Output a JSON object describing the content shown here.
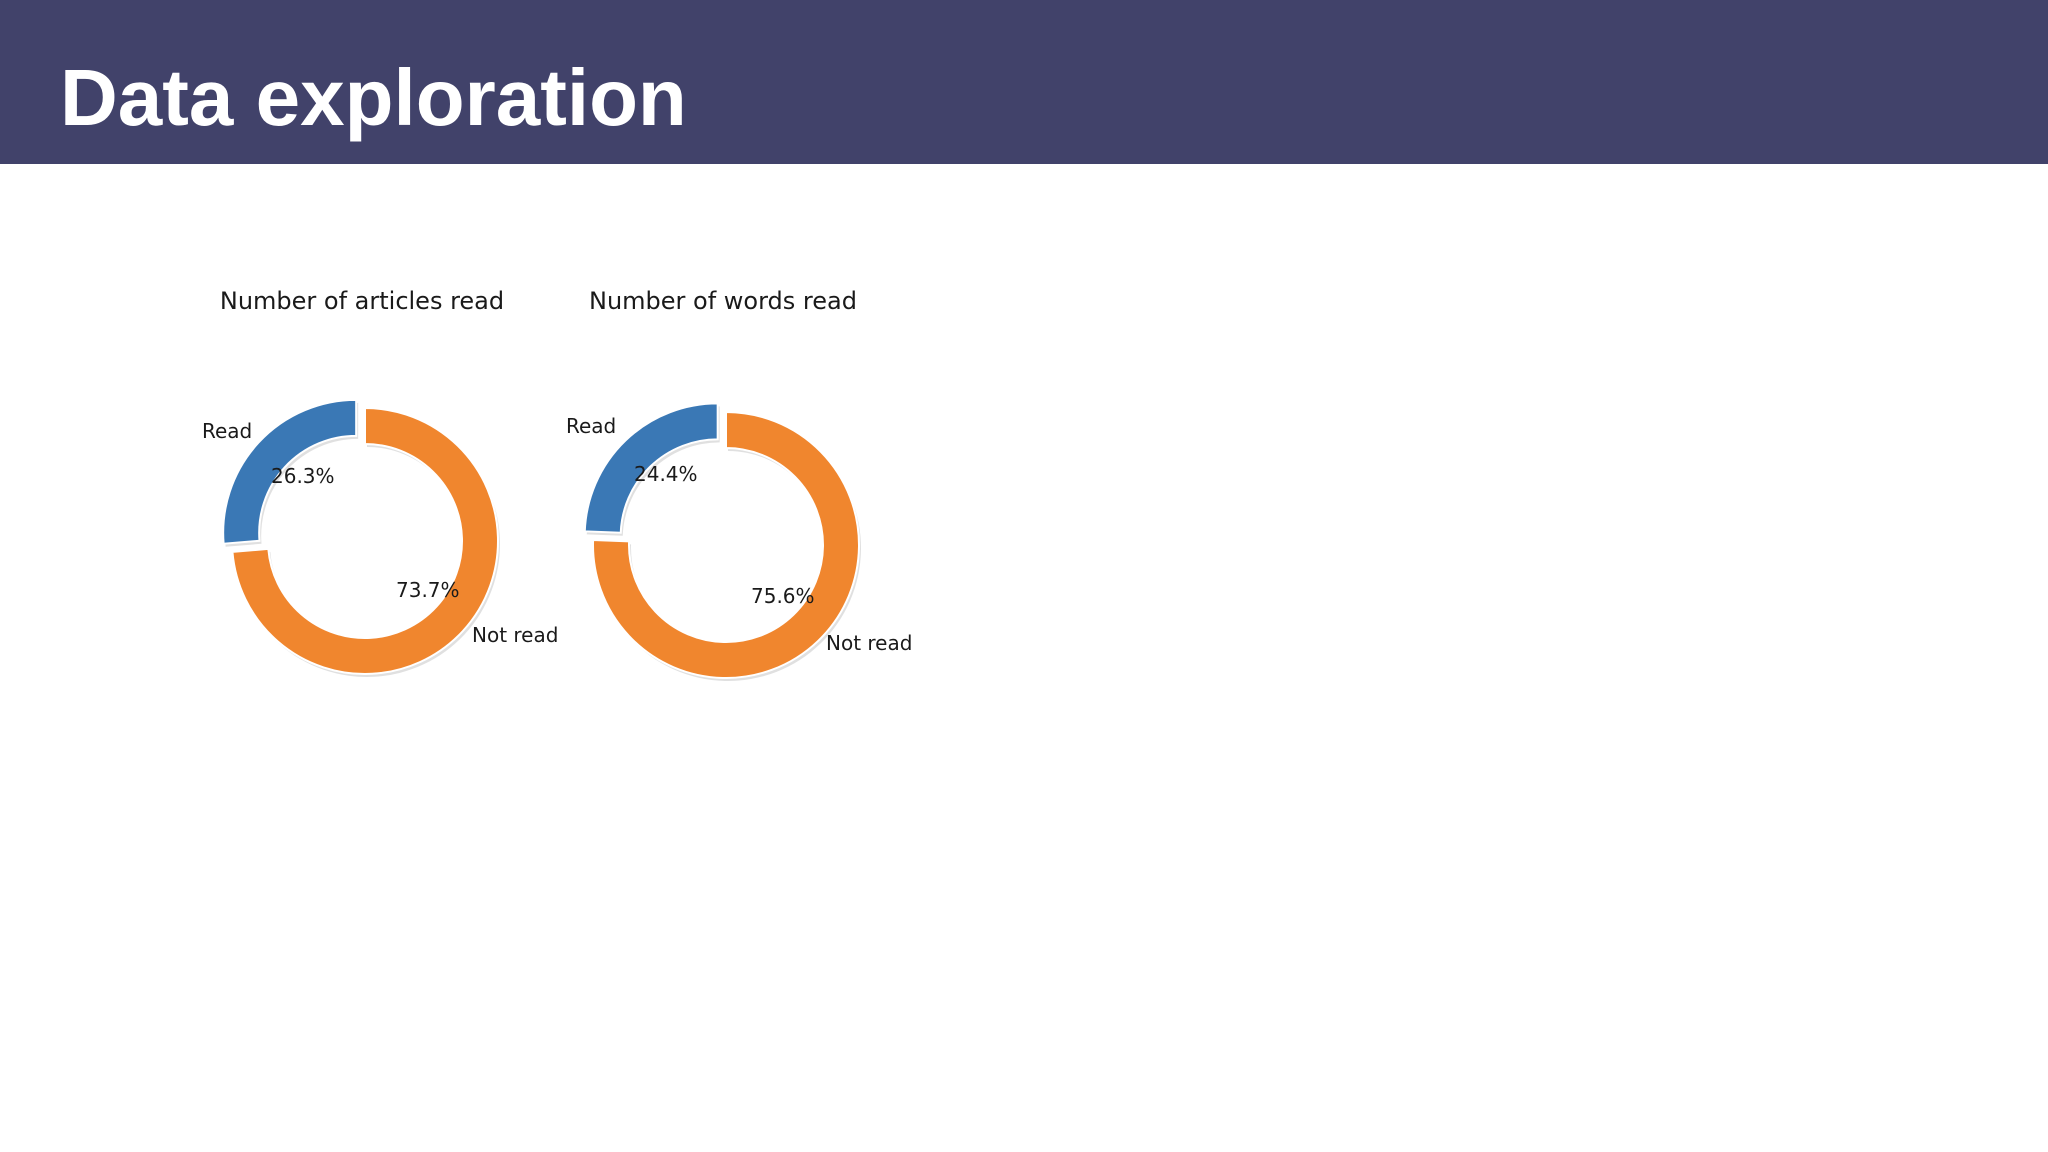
{
  "slide": {
    "title": "Data exploration",
    "header_color": "#41426a"
  },
  "chart_data": [
    {
      "type": "pie",
      "style": "donut",
      "title": "Number of articles read",
      "slices": [
        {
          "label": "Read",
          "value": 26.3,
          "pct_label": "26.3%",
          "color": "#3a78b5",
          "exploded": true
        },
        {
          "label": "Not read",
          "value": 73.7,
          "pct_label": "73.7%",
          "color": "#f0862e",
          "exploded": false
        }
      ]
    },
    {
      "type": "pie",
      "style": "donut",
      "title": "Number of words read",
      "slices": [
        {
          "label": "Read",
          "value": 24.4,
          "pct_label": "24.4%",
          "color": "#3a78b5",
          "exploded": true
        },
        {
          "label": "Not read",
          "value": 75.6,
          "pct_label": "75.6%",
          "color": "#f0862e",
          "exploded": false
        }
      ]
    }
  ]
}
